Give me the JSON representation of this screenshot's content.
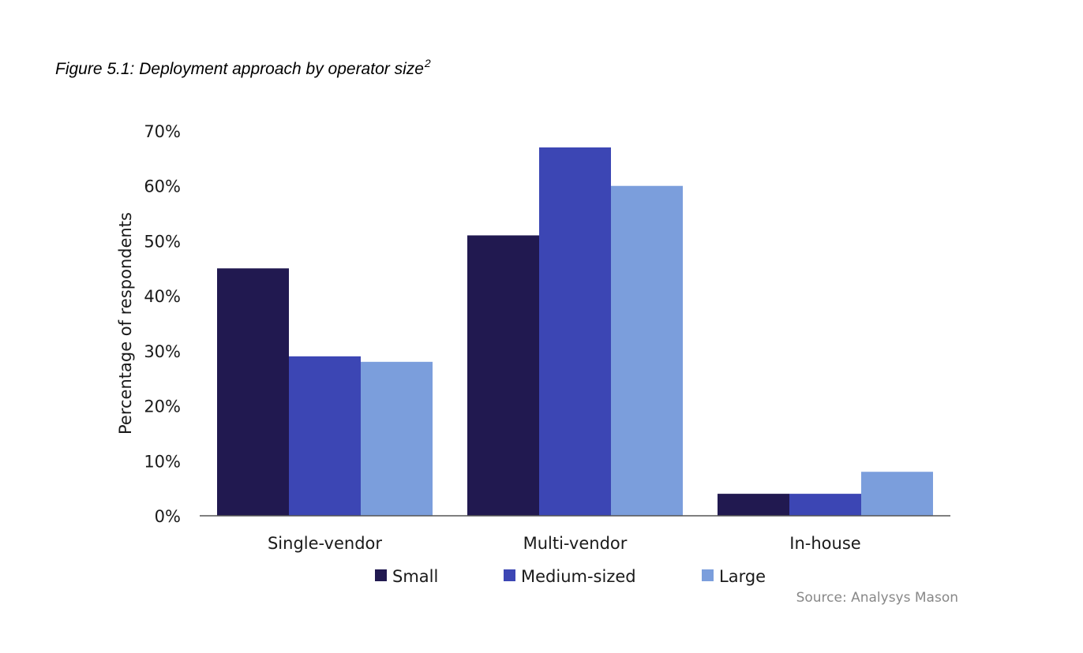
{
  "figure": {
    "title": "Figure 5.1: Deployment approach by operator size",
    "footnote_mark": "2",
    "source": "Source: Analysys Mason"
  },
  "chart_data": {
    "type": "bar",
    "title": "Figure 5.1: Deployment approach by operator size",
    "categories": [
      "Single-vendor",
      "Multi-vendor",
      "In-house"
    ],
    "series": [
      {
        "name": "Small",
        "color": "#211950",
        "values": [
          45,
          51,
          4
        ]
      },
      {
        "name": "Medium-sized",
        "color": "#3c46b4",
        "values": [
          29,
          67,
          4
        ]
      },
      {
        "name": "Large",
        "color": "#7b9edc",
        "values": [
          28,
          60,
          8
        ]
      }
    ],
    "xlabel": "",
    "ylabel": "Percentage of respondents",
    "ylim": [
      0,
      70
    ],
    "yticks": [
      0,
      10,
      20,
      30,
      40,
      50,
      60,
      70
    ],
    "ytick_labels": [
      "0%",
      "10%",
      "20%",
      "30%",
      "40%",
      "50%",
      "60%",
      "70%"
    ],
    "grid": false,
    "legend_position": "bottom"
  }
}
